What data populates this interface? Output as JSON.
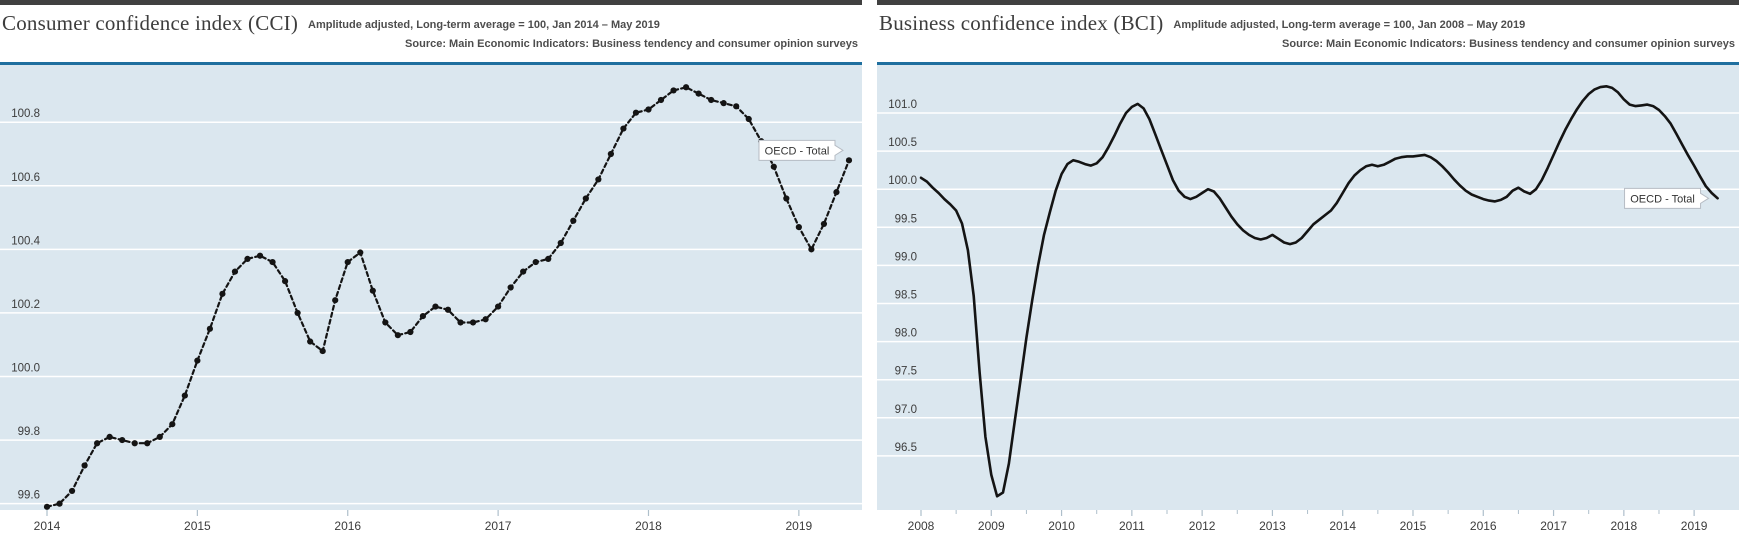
{
  "panels": [
    {
      "title": "Consumer confidence index (CCI)",
      "subtitle": "Amplitude adjusted, Long-term average = 100, Jan 2014 – May 2019",
      "source": "Source: Main Economic Indicators: Business tendency and consumer opinion surveys",
      "series_label": "OECD - Total"
    },
    {
      "title": "Business confidence index (BCI)",
      "subtitle": "Amplitude adjusted, Long-term average = 100, Jan 2008 – May 2019",
      "source": "Source: Main Economic Indicators: Business tendency and consumer opinion surveys",
      "series_label": "OECD - Total"
    }
  ],
  "colors": {
    "top_bar": "#404040",
    "plot_border_top": "#1f6f9f",
    "plot_background": "#dbe7ef",
    "gridline": "#ffffff",
    "line": "#141414",
    "text": "#3c3c3c",
    "tick": "#aebfcb",
    "callout_border": "#b6bcc4",
    "callout_background": "#ffffff"
  },
  "chart_data": [
    {
      "type": "line",
      "title": "Consumer confidence index (CCI)",
      "x_unit": "month",
      "x_start": "Jan 2014",
      "x_end": "May 2019",
      "x_tick_labels": [
        "2014",
        "2015",
        "2016",
        "2017",
        "2018",
        "2019"
      ],
      "y_ticks": [
        99.6,
        99.8,
        100.0,
        100.2,
        100.4,
        100.6,
        100.8
      ],
      "ylim": [
        99.58,
        100.98
      ],
      "grid": true,
      "marker": "dot",
      "legend": "end-of-line callout",
      "series": [
        {
          "name": "OECD - Total",
          "values": [
            99.59,
            99.6,
            99.64,
            99.72,
            99.79,
            99.81,
            99.8,
            99.79,
            99.79,
            99.81,
            99.85,
            99.94,
            100.05,
            100.15,
            100.26,
            100.33,
            100.37,
            100.38,
            100.36,
            100.3,
            100.2,
            100.11,
            100.08,
            100.24,
            100.36,
            100.39,
            100.27,
            100.17,
            100.13,
            100.14,
            100.19,
            100.22,
            100.21,
            100.17,
            100.17,
            100.18,
            100.22,
            100.28,
            100.33,
            100.36,
            100.37,
            100.42,
            100.49,
            100.56,
            100.62,
            100.7,
            100.78,
            100.83,
            100.84,
            100.87,
            100.9,
            100.91,
            100.89,
            100.87,
            100.86,
            100.85,
            100.81,
            100.74,
            100.66,
            100.56,
            100.47,
            100.4,
            100.48,
            100.58,
            100.68
          ]
        }
      ]
    },
    {
      "type": "line",
      "title": "Business confidence index (BCI)",
      "x_unit": "month",
      "x_start": "Jan 2008",
      "x_end": "May 2019",
      "x_tick_labels": [
        "2008",
        "2009",
        "2010",
        "2011",
        "2012",
        "2013",
        "2014",
        "2015",
        "2016",
        "2017",
        "2018",
        "2019"
      ],
      "y_ticks": [
        96.5,
        97.0,
        97.5,
        98.0,
        98.5,
        99.0,
        99.5,
        100.0,
        100.5,
        101.0
      ],
      "ylim": [
        95.79,
        101.63
      ],
      "grid": true,
      "marker": "none",
      "legend": "end-of-line callout",
      "series": [
        {
          "name": "OECD - Total",
          "values": [
            100.15,
            100.1,
            100.02,
            99.95,
            99.87,
            99.8,
            99.72,
            99.55,
            99.2,
            98.6,
            97.6,
            96.75,
            96.25,
            95.97,
            96.02,
            96.4,
            96.95,
            97.5,
            98.05,
            98.55,
            99.0,
            99.4,
            99.7,
            99.98,
            100.2,
            100.33,
            100.38,
            100.36,
            100.33,
            100.31,
            100.34,
            100.42,
            100.55,
            100.7,
            100.86,
            101.0,
            101.08,
            101.12,
            101.06,
            100.92,
            100.72,
            100.52,
            100.32,
            100.12,
            99.98,
            99.9,
            99.87,
            99.9,
            99.95,
            100.0,
            99.97,
            99.88,
            99.76,
            99.64,
            99.54,
            99.46,
            99.4,
            99.36,
            99.34,
            99.36,
            99.4,
            99.35,
            99.3,
            99.28,
            99.3,
            99.36,
            99.45,
            99.54,
            99.6,
            99.66,
            99.72,
            99.82,
            99.95,
            100.08,
            100.18,
            100.25,
            100.3,
            100.32,
            100.3,
            100.32,
            100.36,
            100.4,
            100.42,
            100.43,
            100.43,
            100.44,
            100.45,
            100.42,
            100.37,
            100.3,
            100.22,
            100.13,
            100.05,
            99.98,
            99.93,
            99.9,
            99.87,
            99.85,
            99.84,
            99.86,
            99.9,
            99.98,
            100.02,
            99.97,
            99.94,
            100.0,
            100.12,
            100.28,
            100.45,
            100.62,
            100.78,
            100.92,
            101.05,
            101.16,
            101.25,
            101.31,
            101.34,
            101.35,
            101.33,
            101.27,
            101.18,
            101.11,
            101.09,
            101.1,
            101.11,
            101.09,
            101.04,
            100.96,
            100.86,
            100.72,
            100.58,
            100.44,
            100.31,
            100.17,
            100.04,
            99.95,
            99.88
          ]
        }
      ]
    }
  ]
}
